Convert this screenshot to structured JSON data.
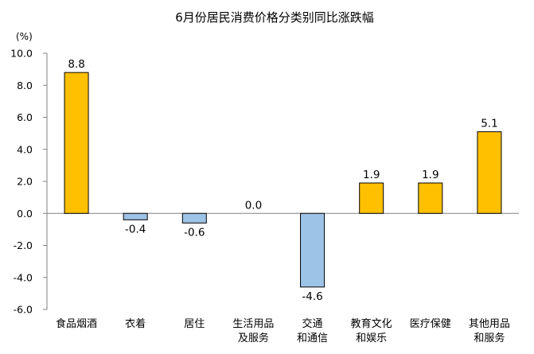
{
  "chart_data": {
    "type": "bar",
    "title": "6月份居民消费价格分类别同比涨跌幅",
    "unit_label": "(%)",
    "categories": [
      [
        "食品烟酒"
      ],
      [
        "衣着"
      ],
      [
        "居住"
      ],
      [
        "生活用品",
        "及服务"
      ],
      [
        "交通",
        "和通信"
      ],
      [
        "教育文化",
        "和娱乐"
      ],
      [
        "医疗保健"
      ],
      [
        "其他用品",
        "和服务"
      ]
    ],
    "values": [
      8.8,
      -0.4,
      -0.6,
      0.0,
      -4.6,
      1.9,
      1.9,
      5.1
    ],
    "value_labels": [
      "8.8",
      "-0.4",
      "-0.6",
      "0.0",
      "-4.6",
      "1.9",
      "1.9",
      "5.1"
    ],
    "ylim": [
      -6.0,
      10.0
    ],
    "yticks": [
      "10.0",
      "8.0",
      "6.0",
      "4.0",
      "2.0",
      "0.0",
      "-2.0",
      "-4.0",
      "-6.0"
    ],
    "ytick_values": [
      10,
      8,
      6,
      4,
      2,
      0,
      -2,
      -4,
      -6
    ],
    "grid": false,
    "legend": "none",
    "colors": {
      "positive": "#FFC000",
      "negative": "#9DC3E6",
      "edge": "#000000"
    }
  }
}
